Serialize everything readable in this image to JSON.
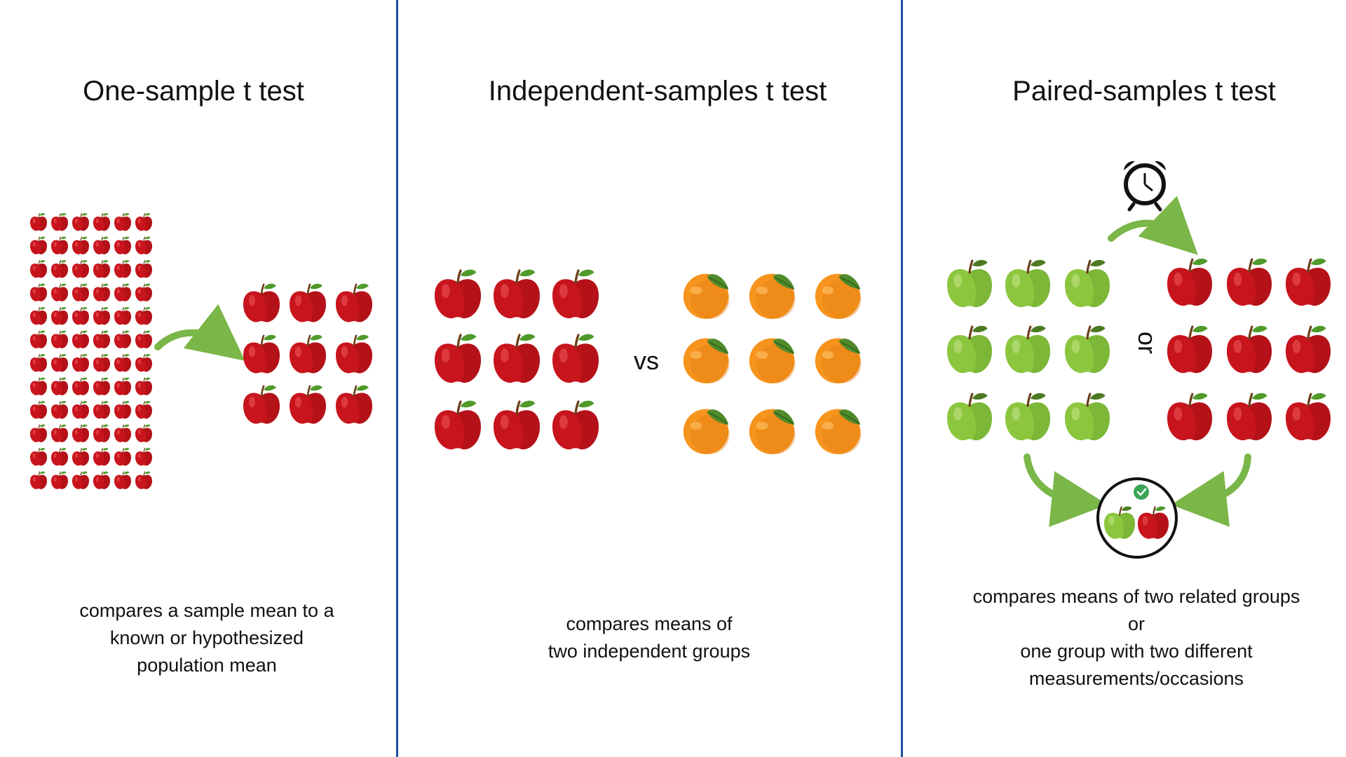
{
  "panels": [
    {
      "title": "One-sample t test",
      "description": [
        "compares a sample mean to a",
        "known or hypothesized",
        "population mean"
      ]
    },
    {
      "title": "Independent-samples t test",
      "description": [
        "compares means of",
        "two independent groups"
      ],
      "connector": "vs"
    },
    {
      "title": "Paired-samples t test",
      "description": [
        "compares means of two related groups",
        "or",
        "one group with two different",
        "measurements/occasions"
      ],
      "connector": "or"
    }
  ],
  "icons": {
    "red_apple": "red-apple-icon",
    "green_apple": "green-apple-icon",
    "orange": "orange-fruit-icon",
    "clock": "alarm-clock-icon",
    "arrow": "curved-arrow-icon",
    "check": "check-badge-icon"
  },
  "colors": {
    "divider": "#1f4fa0",
    "red_apple": "#c8141c",
    "green_apple": "#8cc63e",
    "orange": "#f7941d",
    "arrow": "#7ab648",
    "check": "#3aa655"
  }
}
